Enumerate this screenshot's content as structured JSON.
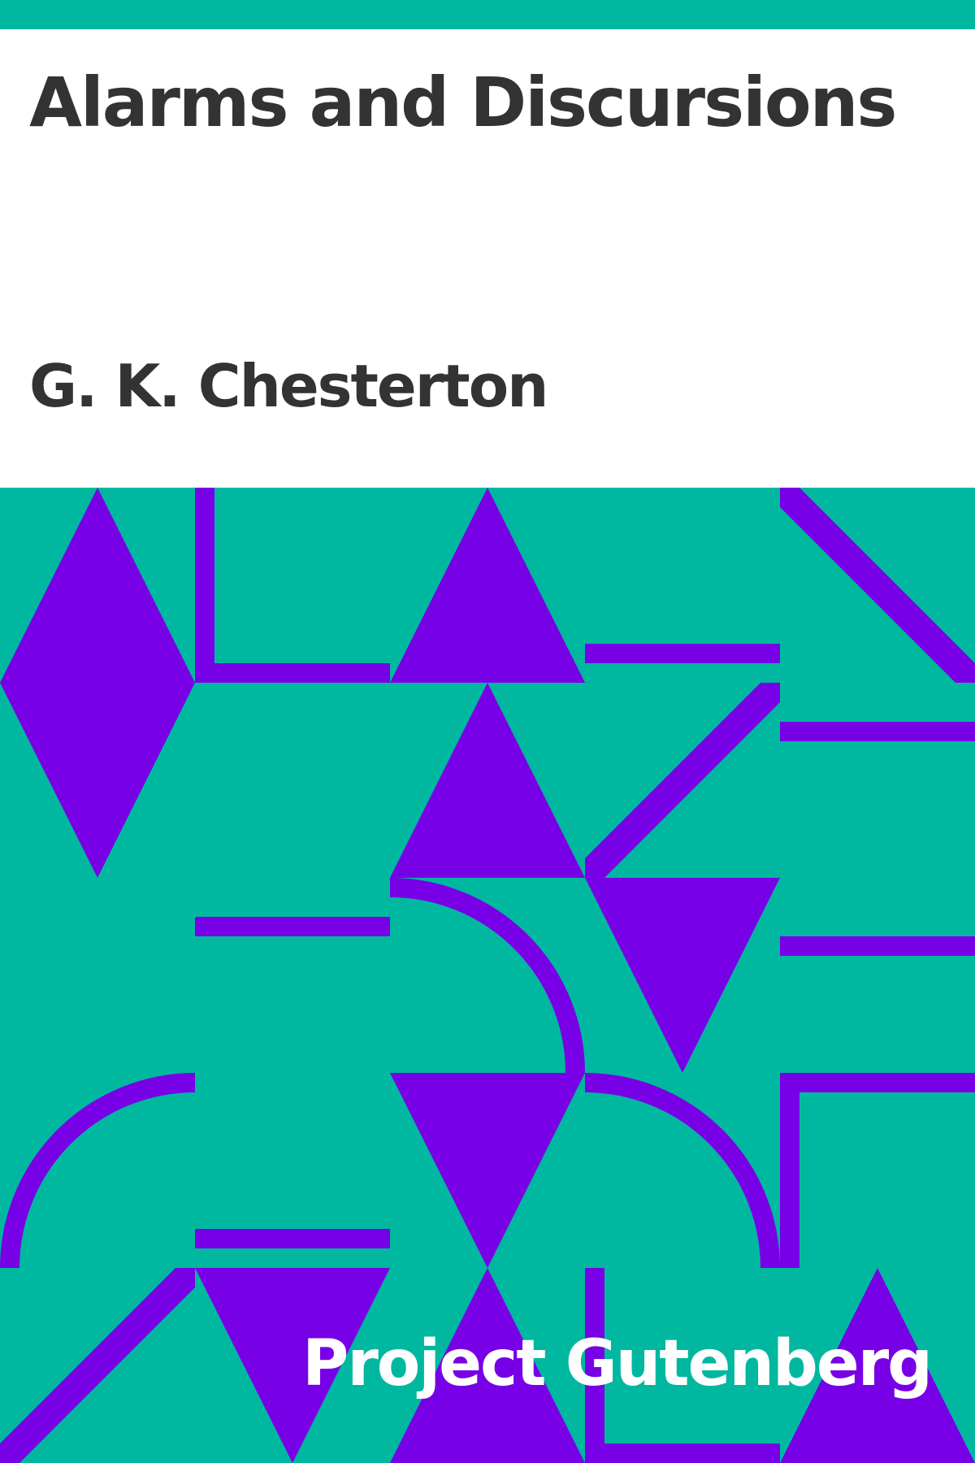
{
  "cover": {
    "title": "Alarms and Discursions",
    "author": "G. K. Chesterton",
    "publisher": "Project Gutenberg"
  },
  "colors": {
    "background": "#ffffff",
    "teal": "#00b89f",
    "purple": "#7700e6",
    "text_dark": "#333333",
    "text_light": "#ffffff"
  },
  "icons": {
    "pattern": "geometric-pattern-icon"
  }
}
